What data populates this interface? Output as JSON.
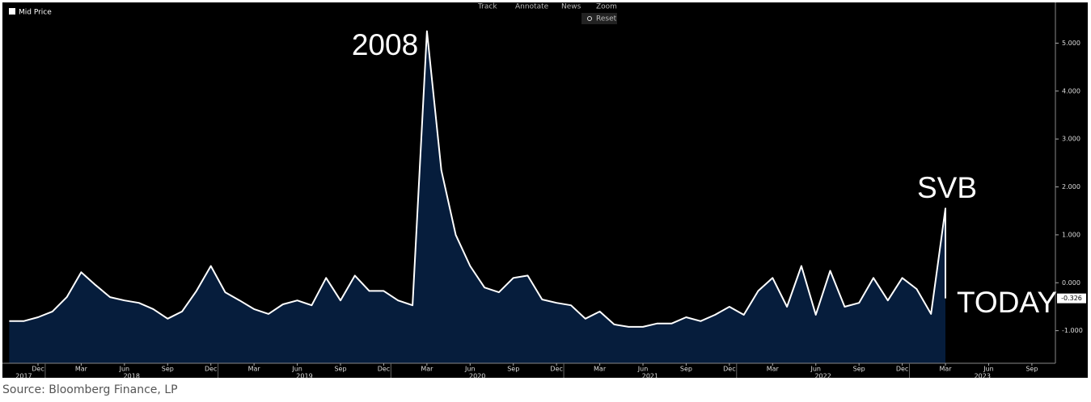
{
  "toolbar": [
    "Track",
    "Annotate",
    "News",
    "Zoom"
  ],
  "reset_button": "Reset",
  "source": "Source: Bloomberg Finance, LP",
  "chart_data": {
    "type": "area",
    "annotations": [
      "2008",
      "SVB",
      "TODAY"
    ],
    "x": [
      "2017-10",
      "2017-11",
      "2017-12",
      "2018-01",
      "2018-02",
      "2018-03",
      "2018-04",
      "2018-05",
      "2018-06",
      "2018-07",
      "2018-08",
      "2018-09",
      "2018-10",
      "2018-11",
      "2018-12",
      "2019-01",
      "2019-02",
      "2019-03",
      "2019-04",
      "2019-05",
      "2019-06",
      "2019-07",
      "2019-08",
      "2019-09",
      "2019-10",
      "2019-11",
      "2019-12",
      "2020-01",
      "2020-02",
      "2020-03",
      "2020-04",
      "2020-05",
      "2020-06",
      "2020-07",
      "2020-08",
      "2020-09",
      "2020-10",
      "2020-11",
      "2020-12",
      "2021-01",
      "2021-02",
      "2021-03",
      "2021-04",
      "2021-05",
      "2021-06",
      "2021-07",
      "2021-08",
      "2021-09",
      "2021-10",
      "2021-11",
      "2021-12",
      "2022-01",
      "2022-02",
      "2022-03",
      "2022-04",
      "2022-05",
      "2022-06",
      "2022-07",
      "2022-08",
      "2022-09",
      "2022-10",
      "2022-11",
      "2022-12",
      "2023-01",
      "2023-02",
      "2023-03",
      "2023-03"
    ],
    "series": [
      {
        "name": "Mid Price",
        "color": "#ffffff",
        "fill": "#061d3c",
        "values": [
          -0.8,
          -0.8,
          -0.72,
          -0.6,
          -0.3,
          0.22,
          -0.05,
          -0.3,
          -0.37,
          -0.42,
          -0.55,
          -0.75,
          -0.6,
          -0.17,
          0.35,
          -0.2,
          -0.37,
          -0.55,
          -0.65,
          -0.45,
          -0.37,
          -0.47,
          0.1,
          -0.37,
          0.15,
          -0.17,
          -0.17,
          -0.37,
          -0.47,
          5.25,
          2.35,
          1.0,
          0.35,
          -0.1,
          -0.2,
          0.1,
          0.15,
          -0.35,
          -0.42,
          -0.47,
          -0.75,
          -0.6,
          -0.87,
          -0.92,
          -0.92,
          -0.85,
          -0.85,
          -0.72,
          -0.8,
          -0.67,
          -0.5,
          -0.67,
          -0.17,
          0.1,
          -0.5,
          0.35,
          -0.67,
          0.25,
          -0.5,
          -0.42,
          0.1,
          -0.37,
          0.1,
          -0.13,
          -0.65,
          1.55,
          -0.326
        ]
      }
    ],
    "ylim": [
      -1.68,
      5.85
    ],
    "yticks": [
      {
        "value": -1,
        "label": "-1.000"
      },
      {
        "value": 0,
        "label": "0.000"
      },
      {
        "value": 1,
        "label": "1.000"
      },
      {
        "value": 2,
        "label": "2.000"
      },
      {
        "value": 3,
        "label": "3.000"
      },
      {
        "value": 4,
        "label": "4.000"
      },
      {
        "value": 5,
        "label": "5.000"
      }
    ],
    "xticks": [
      {
        "value": "2017-12",
        "label": "Dec"
      },
      {
        "value": "2018-03",
        "label": "Mar"
      },
      {
        "value": "2018-06",
        "label": "Jun"
      },
      {
        "value": "2018-09",
        "label": "Sep"
      },
      {
        "value": "2018-12",
        "label": "Dec"
      },
      {
        "value": "2019-03",
        "label": "Mar"
      },
      {
        "value": "2019-06",
        "label": "Jun"
      },
      {
        "value": "2019-09",
        "label": "Sep"
      },
      {
        "value": "2019-12",
        "label": "Dec"
      },
      {
        "value": "2020-03",
        "label": "Mar"
      },
      {
        "value": "2020-06",
        "label": "Jun"
      },
      {
        "value": "2020-09",
        "label": "Sep"
      },
      {
        "value": "2020-12",
        "label": "Dec"
      },
      {
        "value": "2021-03",
        "label": "Mar"
      },
      {
        "value": "2021-06",
        "label": "Jun"
      },
      {
        "value": "2021-09",
        "label": "Sep"
      },
      {
        "value": "2021-12",
        "label": "Dec"
      },
      {
        "value": "2022-03",
        "label": "Mar"
      },
      {
        "value": "2022-06",
        "label": "Jun"
      },
      {
        "value": "2022-09",
        "label": "Sep"
      },
      {
        "value": "2022-12",
        "label": "Dec"
      },
      {
        "value": "2023-03",
        "label": "Mar"
      },
      {
        "value": "2023-06",
        "label": "Jun"
      },
      {
        "value": "2023-09",
        "label": "Sep"
      }
    ],
    "year_labels": [
      "2017",
      "2018",
      "2019",
      "2020",
      "2021",
      "2022",
      "2023"
    ]
  }
}
